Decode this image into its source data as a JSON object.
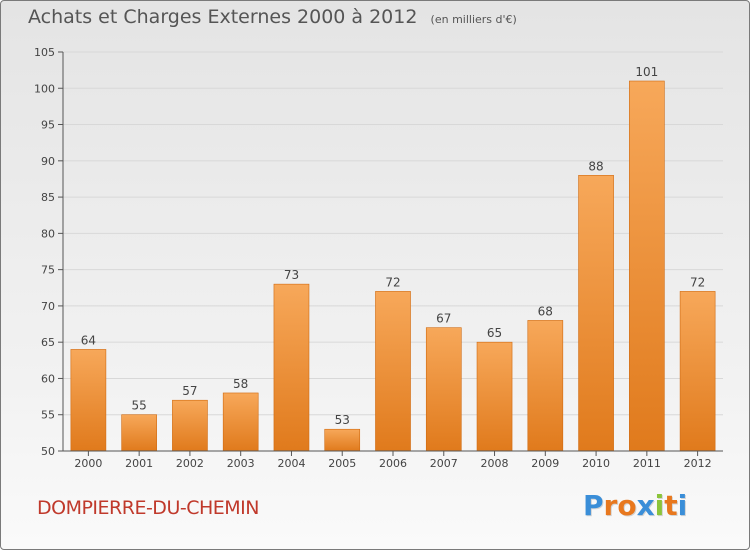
{
  "title": "Achats et Charges Externes 2000 à 2012",
  "unit": "(en milliers d'€)",
  "commune": "DOMPIERRE-DU-CHEMIN",
  "logo": {
    "text": "Proxiti",
    "letter_colors": [
      "#3a8ed8",
      "#e8781e",
      "#e8781e",
      "#3a8ed8",
      "#8bc43a",
      "#e8781e",
      "#3a8ed8"
    ]
  },
  "colors": {
    "bar_light": "#f7a85a",
    "bar_dark": "#e07a1c",
    "bar_edge": "#d06a10",
    "grid": "#d8d8d8",
    "axis": "#555555",
    "text": "#444444",
    "commune": "#c0392b"
  },
  "chart_data": {
    "type": "bar",
    "categories": [
      "2000",
      "2001",
      "2002",
      "2003",
      "2004",
      "2005",
      "2006",
      "2007",
      "2008",
      "2009",
      "2010",
      "2011",
      "2012"
    ],
    "values": [
      64,
      55,
      57,
      58,
      73,
      53,
      72,
      67,
      65,
      68,
      88,
      101,
      72
    ],
    "title": "Achats et Charges Externes 2000 à 2012",
    "ylim": [
      50,
      105
    ],
    "yticks": [
      50,
      55,
      60,
      65,
      70,
      75,
      80,
      85,
      90,
      95,
      100,
      105
    ],
    "grid": true,
    "data_labels": true
  }
}
